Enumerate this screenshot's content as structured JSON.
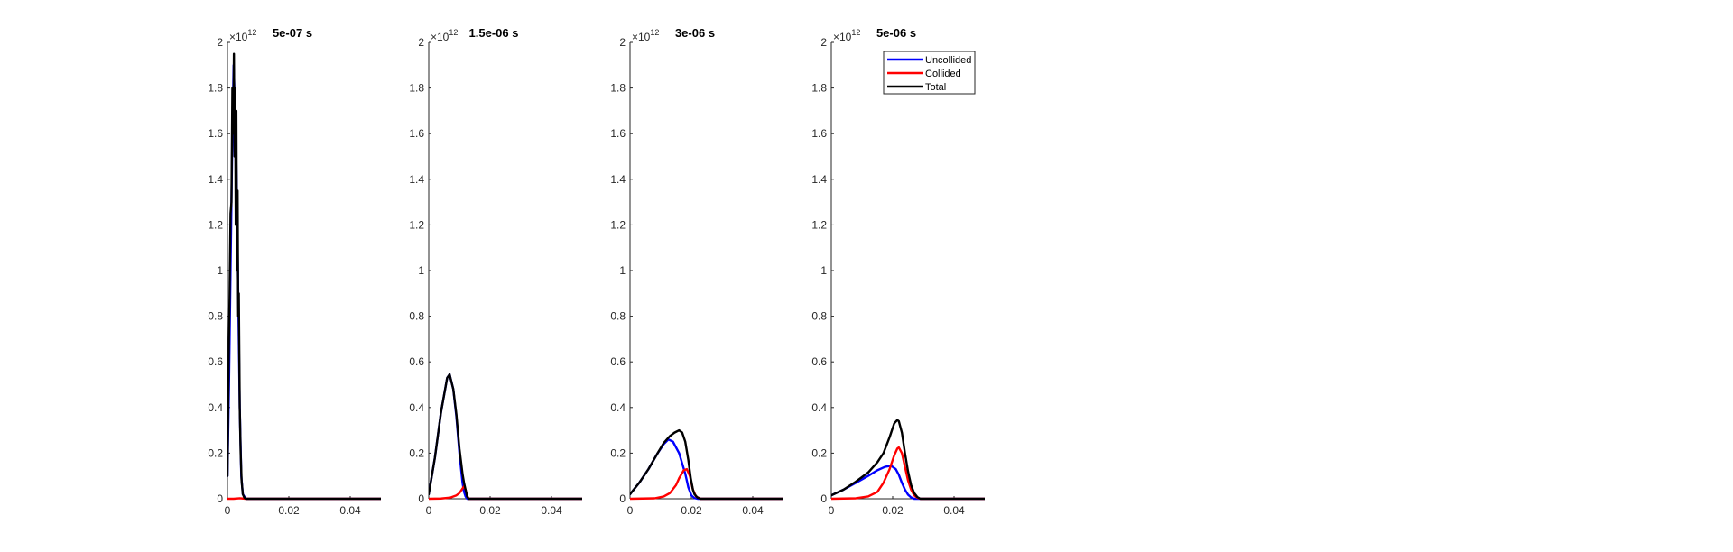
{
  "chart_data": [
    {
      "type": "line",
      "title": "5e-07 s",
      "exponent_label": "×10",
      "exponent_power": "12",
      "xlim": [
        0,
        0.05
      ],
      "ylim": [
        0,
        2
      ],
      "y_scale_factor": 1000000000000.0,
      "x_tick_labels": [
        "0",
        "0.02",
        "0.04"
      ],
      "x_tick_values": [
        0,
        0.02,
        0.04
      ],
      "y_tick_labels": [
        "0",
        "0.2",
        "0.4",
        "0.6",
        "0.8",
        "1",
        "1.2",
        "1.4",
        "1.6",
        "1.8",
        "2"
      ],
      "y_tick_values": [
        0,
        0.2,
        0.4,
        0.6,
        0.8,
        1,
        1.2,
        1.4,
        1.6,
        1.8,
        2
      ],
      "legend": null,
      "series": [
        {
          "color": "#0000ff",
          "x": [
            0,
            0.0005,
            0.001,
            0.0015,
            0.002,
            0.0025,
            0.003,
            0.0035,
            0.004,
            0.0045,
            0.005,
            0.006,
            0.05
          ],
          "y": [
            0.1,
            0.5,
            1.0,
            1.5,
            1.9,
            1.7,
            1.4,
            0.9,
            0.4,
            0.1,
            0.02,
            0,
            0
          ]
        },
        {
          "color": "#ff0000",
          "x": [
            0,
            0.002,
            0.004,
            0.006,
            0.05
          ],
          "y": [
            0,
            0,
            0.002,
            0,
            0
          ]
        },
        {
          "color": "#000000",
          "x": [
            0,
            0.0004,
            0.0007,
            0.001,
            0.0013,
            0.0016,
            0.0019,
            0.0021,
            0.0023,
            0.0025,
            0.0027,
            0.0029,
            0.0031,
            0.0033,
            0.0035,
            0.0037,
            0.004,
            0.0043,
            0.0046,
            0.005,
            0.0055,
            0.006,
            0.05
          ],
          "y": [
            0.1,
            0.6,
            0.9,
            1.25,
            1.3,
            1.8,
            1.6,
            1.95,
            1.5,
            1.8,
            1.2,
            1.7,
            1.0,
            1.35,
            0.8,
            0.9,
            0.4,
            0.2,
            0.08,
            0.02,
            0.005,
            0,
            0
          ]
        }
      ]
    },
    {
      "type": "line",
      "title": "1.5e-06 s",
      "exponent_label": "×10",
      "exponent_power": "12",
      "xlim": [
        0,
        0.05
      ],
      "ylim": [
        0,
        2
      ],
      "y_scale_factor": 1000000000000.0,
      "x_tick_labels": [
        "0",
        "0.02",
        "0.04"
      ],
      "x_tick_values": [
        0,
        0.02,
        0.04
      ],
      "y_tick_labels": [
        "0",
        "0.2",
        "0.4",
        "0.6",
        "0.8",
        "1",
        "1.2",
        "1.4",
        "1.6",
        "1.8",
        "2"
      ],
      "y_tick_values": [
        0,
        0.2,
        0.4,
        0.6,
        0.8,
        1,
        1.2,
        1.4,
        1.6,
        1.8,
        2
      ],
      "legend": null,
      "series": [
        {
          "color": "#0000ff",
          "x": [
            0,
            0.002,
            0.004,
            0.006,
            0.0068,
            0.008,
            0.009,
            0.01,
            0.011,
            0.0115,
            0.012,
            0.0125,
            0.013,
            0.05
          ],
          "y": [
            0.02,
            0.18,
            0.38,
            0.53,
            0.545,
            0.48,
            0.36,
            0.2,
            0.07,
            0.03,
            0.01,
            0,
            0,
            0
          ]
        },
        {
          "color": "#ff0000",
          "x": [
            0,
            0.004,
            0.007,
            0.009,
            0.01,
            0.011,
            0.0115,
            0.012,
            0.0125,
            0.013,
            0.05
          ],
          "y": [
            0,
            0.001,
            0.005,
            0.015,
            0.025,
            0.045,
            0.055,
            0.04,
            0.015,
            0,
            0
          ]
        },
        {
          "color": "#000000",
          "x": [
            0,
            0.002,
            0.004,
            0.006,
            0.0068,
            0.008,
            0.009,
            0.01,
            0.011,
            0.0115,
            0.012,
            0.0125,
            0.013,
            0.05
          ],
          "y": [
            0.02,
            0.18,
            0.38,
            0.53,
            0.545,
            0.48,
            0.37,
            0.22,
            0.11,
            0.07,
            0.04,
            0.01,
            0,
            0
          ]
        }
      ]
    },
    {
      "type": "line",
      "title": "3e-06 s",
      "exponent_label": "×10",
      "exponent_power": "12",
      "xlim": [
        0,
        0.05
      ],
      "ylim": [
        0,
        2
      ],
      "y_scale_factor": 1000000000000.0,
      "x_tick_labels": [
        "0",
        "0.02",
        "0.04"
      ],
      "x_tick_values": [
        0,
        0.02,
        0.04
      ],
      "y_tick_labels": [
        "0",
        "0.2",
        "0.4",
        "0.6",
        "0.8",
        "1",
        "1.2",
        "1.4",
        "1.6",
        "1.8",
        "2"
      ],
      "y_tick_values": [
        0,
        0.2,
        0.4,
        0.6,
        0.8,
        1,
        1.2,
        1.4,
        1.6,
        1.8,
        2
      ],
      "legend": null,
      "series": [
        {
          "color": "#0000ff",
          "x": [
            0,
            0.003,
            0.006,
            0.009,
            0.011,
            0.0125,
            0.014,
            0.016,
            0.018,
            0.019,
            0.02,
            0.021,
            0.022,
            0.05
          ],
          "y": [
            0.02,
            0.07,
            0.13,
            0.2,
            0.24,
            0.26,
            0.25,
            0.2,
            0.11,
            0.05,
            0.015,
            0.003,
            0,
            0
          ]
        },
        {
          "color": "#ff0000",
          "x": [
            0,
            0.008,
            0.011,
            0.013,
            0.015,
            0.016,
            0.0175,
            0.0185,
            0.0195,
            0.0205,
            0.0215,
            0.023,
            0.05
          ],
          "y": [
            0,
            0.002,
            0.01,
            0.025,
            0.06,
            0.09,
            0.125,
            0.13,
            0.1,
            0.04,
            0.01,
            0,
            0
          ]
        },
        {
          "color": "#000000",
          "x": [
            0,
            0.003,
            0.006,
            0.009,
            0.011,
            0.013,
            0.0145,
            0.016,
            0.017,
            0.018,
            0.019,
            0.0198,
            0.0205,
            0.021,
            0.022,
            0.023,
            0.05
          ],
          "y": [
            0.02,
            0.07,
            0.13,
            0.2,
            0.245,
            0.275,
            0.29,
            0.3,
            0.29,
            0.25,
            0.17,
            0.09,
            0.04,
            0.02,
            0.005,
            0,
            0
          ]
        }
      ]
    },
    {
      "type": "line",
      "title": "5e-06 s",
      "exponent_label": "×10",
      "exponent_power": "12",
      "xlim": [
        0,
        0.05
      ],
      "ylim": [
        0,
        2
      ],
      "y_scale_factor": 1000000000000.0,
      "x_tick_labels": [
        "0",
        "0.02",
        "0.04"
      ],
      "x_tick_values": [
        0,
        0.02,
        0.04
      ],
      "y_tick_labels": [
        "0",
        "0.2",
        "0.4",
        "0.6",
        "0.8",
        "1",
        "1.2",
        "1.4",
        "1.6",
        "1.8",
        "2"
      ],
      "y_tick_values": [
        0,
        0.2,
        0.4,
        0.6,
        0.8,
        1,
        1.2,
        1.4,
        1.6,
        1.8,
        2
      ],
      "legend": {
        "position": "top-right",
        "entries": [
          "Uncollided",
          "Collided",
          "Total"
        ]
      },
      "series": [
        {
          "name": "Uncollided",
          "color": "#0000ff",
          "x": [
            0,
            0.004,
            0.008,
            0.012,
            0.015,
            0.0175,
            0.0195,
            0.021,
            0.022,
            0.023,
            0.024,
            0.025,
            0.026,
            0.027,
            0.05
          ],
          "y": [
            0.015,
            0.04,
            0.07,
            0.1,
            0.125,
            0.14,
            0.145,
            0.13,
            0.105,
            0.07,
            0.04,
            0.018,
            0.006,
            0,
            0
          ]
        },
        {
          "name": "Collided",
          "color": "#ff0000",
          "x": [
            0,
            0.008,
            0.012,
            0.015,
            0.017,
            0.019,
            0.0205,
            0.0215,
            0.022,
            0.023,
            0.024,
            0.025,
            0.026,
            0.027,
            0.028,
            0.029,
            0.05
          ],
          "y": [
            0,
            0.002,
            0.01,
            0.03,
            0.07,
            0.13,
            0.19,
            0.22,
            0.225,
            0.2,
            0.14,
            0.08,
            0.04,
            0.015,
            0.005,
            0,
            0
          ]
        },
        {
          "name": "Total",
          "color": "#000000",
          "x": [
            0,
            0.004,
            0.008,
            0.012,
            0.015,
            0.017,
            0.019,
            0.0205,
            0.0215,
            0.022,
            0.023,
            0.024,
            0.025,
            0.026,
            0.027,
            0.028,
            0.029,
            0.05
          ],
          "y": [
            0.015,
            0.04,
            0.075,
            0.115,
            0.16,
            0.2,
            0.27,
            0.33,
            0.345,
            0.34,
            0.29,
            0.2,
            0.12,
            0.06,
            0.025,
            0.008,
            0,
            0
          ]
        }
      ]
    }
  ]
}
